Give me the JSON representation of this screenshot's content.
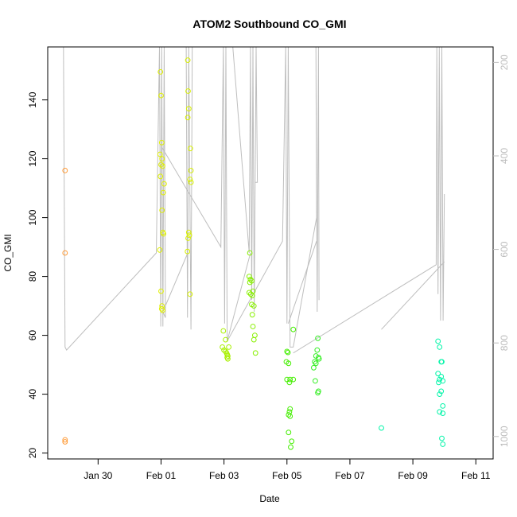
{
  "chart_data": {
    "type": "scatter",
    "title": "ATOM2 Southbound CO_GMI",
    "xlabel": "Date",
    "ylabel": "CO_GMI",
    "x_ticks": [
      "Jan 30",
      "Feb 01",
      "Feb 03",
      "Feb 05",
      "Feb 07",
      "Feb 09",
      "Feb 11"
    ],
    "x_tick_days": [
      1,
      3,
      5,
      7,
      9,
      11,
      13
    ],
    "xlim_days": [
      -0.6,
      13.55
    ],
    "ylim": [
      18,
      158
    ],
    "y_ticks": [
      20,
      40,
      60,
      80,
      100,
      120,
      140
    ],
    "y2_ticks": [
      200,
      400,
      600,
      800,
      1000
    ],
    "y2lim": [
      1048,
      167
    ],
    "grid": false,
    "colors": {
      "orange": "#ff9933",
      "yellow": "#e0f000",
      "yellowgreen": "#b0f000",
      "green": "#44ee00",
      "green2": "#22ee22",
      "cyan": "#00f5a8",
      "line": "#bebebe"
    },
    "series": [
      {
        "color": "#ff9933",
        "points": [
          [
            -0.05,
            116
          ],
          [
            -0.05,
            88
          ],
          [
            -0.05,
            24.5
          ],
          [
            -0.05,
            23.8
          ]
        ]
      },
      {
        "color": "#e0f000",
        "points": [
          [
            2.98,
            149.5
          ],
          [
            3.0,
            141.5
          ],
          [
            3.02,
            125.5
          ],
          [
            2.97,
            121.5
          ],
          [
            3.03,
            120
          ],
          [
            3.0,
            118
          ],
          [
            3.05,
            117.5
          ],
          [
            2.98,
            114
          ],
          [
            3.1,
            111.5
          ],
          [
            3.07,
            108.5
          ],
          [
            3.03,
            102.5
          ],
          [
            3.06,
            95
          ],
          [
            3.08,
            94.5
          ],
          [
            2.96,
            89
          ],
          [
            3.0,
            75
          ],
          [
            3.03,
            70
          ],
          [
            3.05,
            68.5
          ],
          [
            3.02,
            69
          ]
        ]
      },
      {
        "color": "#d8f000",
        "points": [
          [
            3.85,
            153.5
          ],
          [
            3.86,
            143
          ],
          [
            3.88,
            137
          ],
          [
            3.85,
            134
          ],
          [
            3.93,
            123.5
          ],
          [
            3.95,
            116
          ],
          [
            3.92,
            113
          ],
          [
            3.95,
            112
          ],
          [
            3.88,
            95
          ],
          [
            3.86,
            93
          ],
          [
            3.9,
            94
          ],
          [
            3.84,
            88.5
          ],
          [
            3.92,
            74
          ]
        ]
      },
      {
        "color": "#a8f000",
        "points": [
          [
            4.98,
            61.5
          ],
          [
            5.05,
            58.5
          ],
          [
            4.95,
            56
          ],
          [
            5.15,
            56
          ],
          [
            5.0,
            55
          ],
          [
            5.05,
            54.5
          ],
          [
            5.08,
            54
          ],
          [
            5.1,
            53.5
          ],
          [
            5.12,
            53
          ],
          [
            5.1,
            52.5
          ],
          [
            5.12,
            52
          ]
        ]
      },
      {
        "color": "#88f000",
        "points": [
          [
            5.82,
            88
          ],
          [
            5.8,
            80
          ],
          [
            5.84,
            79
          ],
          [
            5.88,
            78.5
          ],
          [
            5.82,
            78
          ],
          [
            5.92,
            75
          ],
          [
            5.8,
            74.5
          ],
          [
            5.85,
            74
          ],
          [
            5.9,
            73.5
          ],
          [
            5.88,
            70.5
          ],
          [
            5.95,
            70
          ],
          [
            5.9,
            67
          ],
          [
            5.92,
            63
          ],
          [
            5.98,
            60
          ],
          [
            5.95,
            58.5
          ],
          [
            6.0,
            54
          ]
        ]
      },
      {
        "color": "#44ee00",
        "points": [
          [
            7.0,
            54.5
          ],
          [
            7.03,
            54.2
          ],
          [
            6.98,
            51
          ],
          [
            7.05,
            50.5
          ],
          [
            7.1,
            45
          ],
          [
            7.0,
            45
          ],
          [
            7.08,
            44
          ],
          [
            7.2,
            45
          ],
          [
            7.2,
            62
          ],
          [
            7.1,
            35
          ],
          [
            7.08,
            34
          ],
          [
            7.05,
            33
          ],
          [
            7.1,
            32.5
          ],
          [
            7.05,
            27
          ],
          [
            7.15,
            24
          ],
          [
            7.12,
            22
          ]
        ]
      },
      {
        "color": "#33ee22",
        "points": [
          [
            7.88,
            51
          ],
          [
            7.92,
            50.5
          ],
          [
            7.85,
            49
          ],
          [
            7.98,
            59
          ],
          [
            7.96,
            55
          ],
          [
            7.92,
            53
          ],
          [
            8.0,
            52.5
          ],
          [
            8.02,
            52
          ],
          [
            7.9,
            44.5
          ],
          [
            8.0,
            41
          ],
          [
            7.98,
            40.5
          ]
        ]
      },
      {
        "color": "#00f5a8",
        "points": [
          [
            10.0,
            28.5
          ],
          [
            11.8,
            58
          ],
          [
            11.85,
            56
          ],
          [
            11.9,
            51
          ],
          [
            11.92,
            51
          ],
          [
            11.8,
            47
          ],
          [
            11.9,
            46
          ],
          [
            11.85,
            45
          ],
          [
            11.95,
            44.5
          ],
          [
            11.82,
            44
          ],
          [
            11.9,
            41
          ],
          [
            11.85,
            40
          ],
          [
            11.95,
            36
          ],
          [
            11.85,
            34
          ],
          [
            11.95,
            33.5
          ],
          [
            11.92,
            25
          ],
          [
            11.95,
            23
          ]
        ]
      }
    ],
    "profile_paths": [
      [
        [
          -0.1,
          158
        ],
        [
          -0.05,
          56
        ],
        [
          0.0,
          55
        ],
        [
          2.85,
          88
        ],
        [
          2.95,
          158
        ],
        [
          2.99,
          63
        ],
        [
          3.02,
          158
        ],
        [
          3.06,
          63
        ],
        [
          3.1,
          158
        ],
        [
          3.14,
          66
        ],
        [
          3.06,
          68
        ],
        [
          3.85,
          88
        ]
      ],
      [
        [
          3.02,
          124
        ],
        [
          4.9,
          90
        ],
        [
          4.98,
          158
        ],
        [
          5.02,
          64
        ],
        [
          5.06,
          158
        ],
        [
          5.1,
          58
        ],
        [
          5.84,
          88
        ]
      ],
      [
        [
          3.8,
          158
        ],
        [
          3.84,
          66
        ],
        [
          3.88,
          158
        ],
        [
          3.95,
          62
        ],
        [
          3.99,
          158
        ]
      ],
      [
        [
          5.28,
          158
        ],
        [
          5.8,
          88
        ],
        [
          5.84,
          158
        ],
        [
          5.88,
          72
        ],
        [
          5.92,
          158
        ],
        [
          5.96,
          68
        ],
        [
          6.02,
          158
        ],
        [
          6.06,
          112
        ],
        [
          5.98,
          112
        ]
      ],
      [
        [
          5.1,
          58
        ],
        [
          6.86,
          92
        ],
        [
          6.96,
          158
        ],
        [
          7.0,
          64
        ],
        [
          7.04,
          158
        ],
        [
          7.1,
          56
        ],
        [
          7.2,
          56
        ],
        [
          7.94,
          100
        ],
        [
          7.92,
          158
        ],
        [
          7.96,
          68
        ],
        [
          8.0,
          158
        ],
        [
          8.02,
          72
        ]
      ],
      [
        [
          7.04,
          64
        ],
        [
          7.94,
          92
        ]
      ],
      [
        [
          7.2,
          54
        ],
        [
          11.74,
          84
        ],
        [
          11.76,
          158
        ],
        [
          11.8,
          74
        ],
        [
          11.84,
          158
        ],
        [
          11.88,
          65
        ],
        [
          11.92,
          158
        ],
        [
          11.96,
          65
        ],
        [
          12.0,
          108
        ]
      ],
      [
        [
          10.0,
          62
        ],
        [
          12.0,
          85
        ]
      ]
    ]
  }
}
